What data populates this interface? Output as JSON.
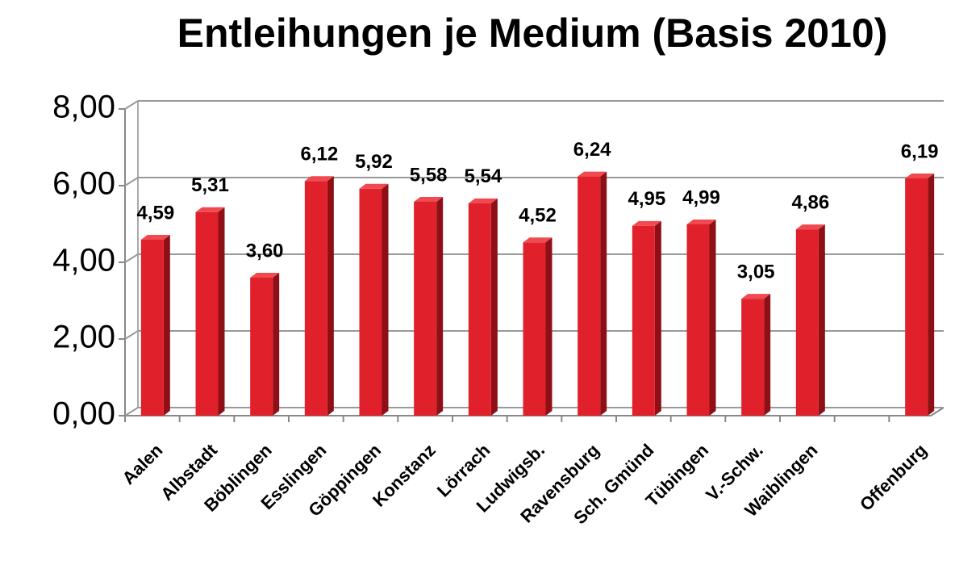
{
  "chart_data": {
    "type": "bar",
    "title": "Entleihungen je Medium (Basis 2010)",
    "categories": [
      "Aalen",
      "Albstadt",
      "Böblingen",
      "Esslingen",
      "Göppingen",
      "Konstanz",
      "Lörrach",
      "Ludwigsb.",
      "Ravensburg",
      "Sch. Gmünd",
      "Tübingen",
      "V.-Schw.",
      "Waiblingen",
      null,
      "Offenburg"
    ],
    "values": [
      4.59,
      5.31,
      3.6,
      6.12,
      5.92,
      5.58,
      5.54,
      4.52,
      6.24,
      4.95,
      4.99,
      3.05,
      4.86,
      null,
      6.19
    ],
    "value_labels": [
      "4,59",
      "5,31",
      "3,60",
      "6,12",
      "5,92",
      "5,58",
      "5,54",
      "4,52",
      "6,24",
      "4,95",
      "4,99",
      "3,05",
      "4,86",
      null,
      "6,19"
    ],
    "color": "#e0202a",
    "ylim": [
      0,
      8
    ],
    "yticks": [
      {
        "value": 0,
        "label": "0,00"
      },
      {
        "value": 2,
        "label": "2,00"
      },
      {
        "value": 4,
        "label": "4,00"
      },
      {
        "value": 6,
        "label": "6,00"
      },
      {
        "value": 8,
        "label": "8,00"
      }
    ],
    "grid": true
  }
}
